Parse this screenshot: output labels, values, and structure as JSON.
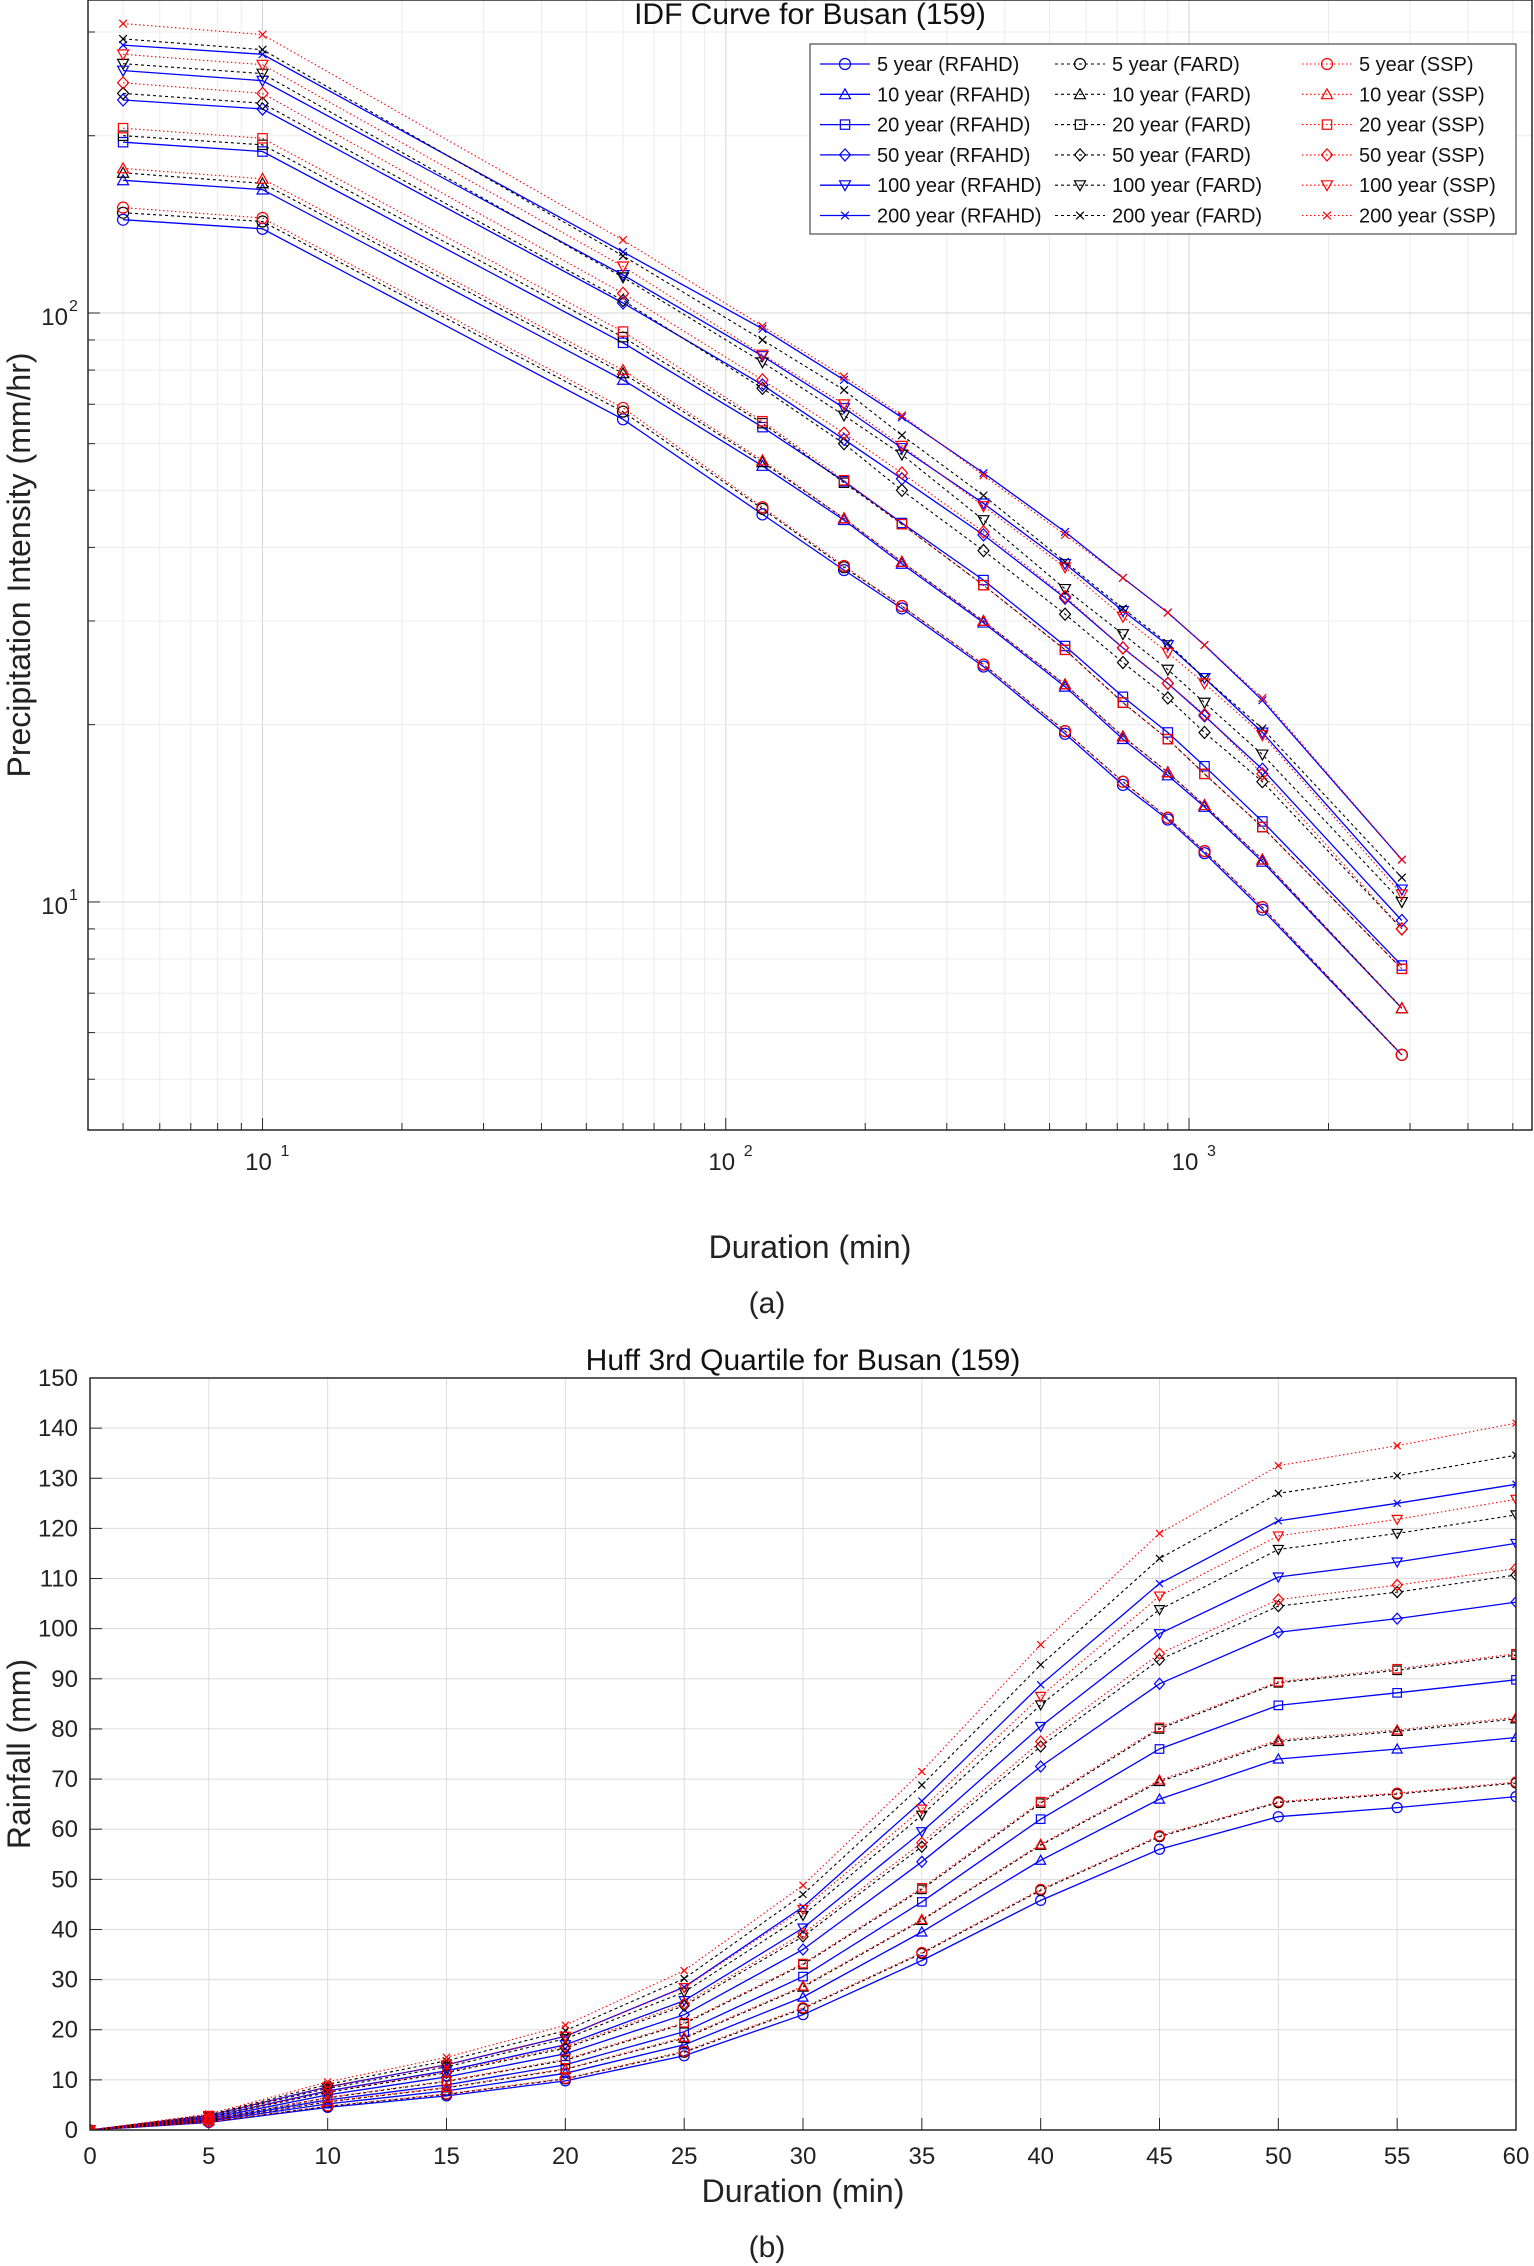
{
  "colors": {
    "RFAHD": "#0000ff",
    "FARD": "#000000",
    "SSP": "#ff0000"
  },
  "legend": [
    {
      "label": "5 year (RFAHD)",
      "method": "RFAHD",
      "marker": "circle"
    },
    {
      "label": "10 year (RFAHD)",
      "method": "RFAHD",
      "marker": "triangle"
    },
    {
      "label": "20 year (RFAHD)",
      "method": "RFAHD",
      "marker": "square"
    },
    {
      "label": "50 year (RFAHD)",
      "method": "RFAHD",
      "marker": "diamond"
    },
    {
      "label": "100 year (RFAHD)",
      "method": "RFAHD",
      "marker": "triangle-down"
    },
    {
      "label": "200 year (RFAHD)",
      "method": "RFAHD",
      "marker": "x"
    },
    {
      "label": "5 year (FARD)",
      "method": "FARD",
      "marker": "circle"
    },
    {
      "label": "10 year (FARD)",
      "method": "FARD",
      "marker": "triangle"
    },
    {
      "label": "20 year (FARD)",
      "method": "FARD",
      "marker": "square"
    },
    {
      "label": "50 year (FARD)",
      "method": "FARD",
      "marker": "diamond"
    },
    {
      "label": "100 year (FARD)",
      "method": "FARD",
      "marker": "triangle-down"
    },
    {
      "label": "200 year (FARD)",
      "method": "FARD",
      "marker": "x"
    },
    {
      "label": "5 year (SSP)",
      "method": "SSP",
      "marker": "circle"
    },
    {
      "label": "10 year (SSP)",
      "method": "SSP",
      "marker": "triangle"
    },
    {
      "label": "20 year (SSP)",
      "method": "SSP",
      "marker": "square"
    },
    {
      "label": "50 year (SSP)",
      "method": "SSP",
      "marker": "diamond"
    },
    {
      "label": "100 year (SSP)",
      "method": "SSP",
      "marker": "triangle-down"
    },
    {
      "label": "200 year (SSP)",
      "method": "SSP",
      "marker": "x"
    }
  ],
  "captions": {
    "a": "(a)",
    "b": "(b)"
  },
  "chart_data": [
    {
      "type": "line",
      "title": "IDF Curve for Busan (159)",
      "xlabel": "Duration (min)",
      "ylabel": "Precipitation Intensity (mm/hr)",
      "xscale": "log",
      "yscale": "log",
      "xlim": [
        4.2,
        5500
      ],
      "ylim": [
        4.1,
        340
      ],
      "xtick_labels": [
        {
          "base": "10",
          "exp": "1",
          "value": 10
        },
        {
          "base": "10",
          "exp": "2",
          "value": 100
        },
        {
          "base": "10",
          "exp": "3",
          "value": 1000
        }
      ],
      "ytick_labels": [
        {
          "base": "10",
          "exp": "1",
          "value": 10
        },
        {
          "base": "10",
          "exp": "2",
          "value": 100
        }
      ],
      "grid": true,
      "legend_position": "top-right",
      "x": [
        5,
        10,
        60,
        120,
        180,
        240,
        360,
        540,
        720,
        900,
        1080,
        1440,
        2880
      ],
      "series": [
        {
          "name": "5 year (RFAHD)",
          "method": "RFAHD",
          "marker": "circle",
          "values": [
            144,
            139,
            66,
            45.5,
            36.6,
            31.5,
            25.1,
            19.3,
            15.8,
            13.8,
            12.1,
            9.7,
            5.5
          ]
        },
        {
          "name": "10 year (RFAHD)",
          "method": "RFAHD",
          "marker": "triangle",
          "values": [
            168,
            162,
            77,
            55.0,
            44.5,
            37.5,
            29.8,
            23.2,
            18.9,
            16.4,
            14.5,
            11.7,
            6.6
          ]
        },
        {
          "name": "20 year (RFAHD)",
          "method": "RFAHD",
          "marker": "square",
          "values": [
            195,
            188,
            89,
            64.0,
            51.8,
            44.0,
            35.2,
            27.2,
            22.3,
            19.4,
            17.0,
            13.7,
            7.8
          ]
        },
        {
          "name": "50 year (RFAHD)",
          "method": "RFAHD",
          "marker": "diamond",
          "values": [
            230,
            222,
            104,
            75.5,
            61.0,
            52.3,
            42.0,
            32.8,
            27.0,
            23.5,
            20.7,
            16.8,
            9.3
          ]
        },
        {
          "name": "100 year (RFAHD)",
          "method": "RFAHD",
          "marker": "triangle-down",
          "values": [
            258,
            248,
            116,
            84.5,
            69.0,
            59.0,
            47.5,
            37.5,
            31.2,
            27.3,
            24.0,
            19.4,
            10.5
          ]
        },
        {
          "name": "200 year (RFAHD)",
          "method": "RFAHD",
          "marker": "x",
          "values": [
            285,
            275,
            127,
            94.0,
            77.0,
            66.5,
            53.5,
            42.5,
            35.5,
            31.0,
            27.3,
            22.0,
            11.8
          ]
        },
        {
          "name": "5 year (FARD)",
          "method": "FARD",
          "marker": "circle",
          "values": [
            148,
            143,
            68,
            46.5,
            37.0,
            31.8,
            25.3,
            19.5,
            16.0,
            13.9,
            12.2,
            9.8,
            5.5
          ]
        },
        {
          "name": "10 year (FARD)",
          "method": "FARD",
          "marker": "triangle",
          "values": [
            173,
            166,
            79,
            55.8,
            44.8,
            37.8,
            30.0,
            23.4,
            19.1,
            16.6,
            14.6,
            11.8,
            6.6
          ]
        },
        {
          "name": "20 year (FARD)",
          "method": "FARD",
          "marker": "square",
          "values": [
            200,
            193,
            91,
            65.0,
            51.5,
            43.8,
            34.5,
            26.8,
            21.8,
            18.9,
            16.5,
            13.4,
            7.7
          ]
        },
        {
          "name": "50 year (FARD)",
          "method": "FARD",
          "marker": "diamond",
          "values": [
            236,
            227,
            105,
            74.5,
            60.0,
            50.0,
            39.5,
            30.8,
            25.5,
            22.2,
            19.4,
            16.0,
            9.0
          ]
        },
        {
          "name": "100 year (FARD)",
          "method": "FARD",
          "marker": "triangle-down",
          "values": [
            265,
            255,
            115,
            82.5,
            67.0,
            57.5,
            44.5,
            34.0,
            28.5,
            24.8,
            21.8,
            17.8,
            10.0
          ]
        },
        {
          "name": "200 year (FARD)",
          "method": "FARD",
          "marker": "x",
          "values": [
            292,
            280,
            125,
            90.0,
            74.0,
            62.0,
            49.0,
            37.8,
            31.5,
            27.5,
            24.0,
            19.7,
            11.0
          ]
        },
        {
          "name": "5 year (SSP)",
          "method": "SSP",
          "marker": "circle",
          "values": [
            151,
            145,
            69,
            46.8,
            37.2,
            31.8,
            25.3,
            19.5,
            16.0,
            13.9,
            12.2,
            9.8,
            5.5
          ]
        },
        {
          "name": "10 year (SSP)",
          "method": "SSP",
          "marker": "triangle",
          "values": [
            176,
            169,
            80,
            56.2,
            44.8,
            37.8,
            30.0,
            23.4,
            19.1,
            16.6,
            14.6,
            11.8,
            6.6
          ]
        },
        {
          "name": "20 year (SSP)",
          "method": "SSP",
          "marker": "square",
          "values": [
            206,
            198,
            93,
            65.5,
            52.0,
            43.8,
            34.5,
            26.8,
            21.8,
            18.9,
            16.5,
            13.4,
            7.7
          ]
        },
        {
          "name": "50 year (SSP)",
          "method": "SSP",
          "marker": "diamond",
          "values": [
            246,
            236,
            108,
            77.0,
            62.5,
            53.5,
            42.5,
            33.0,
            27.0,
            23.5,
            20.8,
            16.5,
            9.0
          ]
        },
        {
          "name": "100 year (SSP)",
          "method": "SSP",
          "marker": "triangle-down",
          "values": [
            275,
            264,
            120,
            85.0,
            70.0,
            59.5,
            47.0,
            37.0,
            30.5,
            26.5,
            23.5,
            19.2,
            10.3
          ]
        },
        {
          "name": "200 year (SSP)",
          "method": "SSP",
          "marker": "x",
          "values": [
            310,
            297,
            133,
            95.0,
            78.0,
            67.0,
            53.0,
            42.0,
            35.5,
            31.0,
            27.3,
            22.2,
            11.8
          ]
        }
      ]
    },
    {
      "type": "line",
      "title": "Huff 3rd Quartile for Busan (159)",
      "xlabel": "Duration (min)",
      "ylabel": "Rainfall (mm)",
      "xlim": [
        0,
        60
      ],
      "ylim": [
        0,
        150
      ],
      "xticks": [
        0,
        5,
        10,
        15,
        20,
        25,
        30,
        35,
        40,
        45,
        50,
        55,
        60
      ],
      "yticks": [
        0,
        10,
        20,
        30,
        40,
        50,
        60,
        70,
        80,
        90,
        100,
        110,
        120,
        130,
        140,
        150
      ],
      "grid": true,
      "x": [
        0,
        5,
        10,
        15,
        20,
        25,
        30,
        35,
        40,
        45,
        50,
        55,
        60
      ],
      "series": [
        {
          "name": "5 year (RFAHD)",
          "method": "RFAHD",
          "marker": "circle",
          "values": [
            0,
            1.5,
            4.5,
            6.8,
            9.8,
            14.8,
            23.0,
            33.8,
            45.8,
            56.0,
            62.5,
            64.3,
            66.5
          ]
        },
        {
          "name": "10 year (RFAHD)",
          "method": "RFAHD",
          "marker": "triangle",
          "values": [
            0,
            1.8,
            5.2,
            7.8,
            11.3,
            17.0,
            26.5,
            39.5,
            53.8,
            66.0,
            74.0,
            76.0,
            78.3
          ]
        },
        {
          "name": "20 year (RFAHD)",
          "method": "RFAHD",
          "marker": "square",
          "values": [
            0,
            2.0,
            6.0,
            9.0,
            13.0,
            19.6,
            30.6,
            45.5,
            62.0,
            76.0,
            84.7,
            87.2,
            89.8
          ]
        },
        {
          "name": "50 year (RFAHD)",
          "method": "RFAHD",
          "marker": "diamond",
          "values": [
            0,
            2.3,
            7.0,
            10.6,
            15.2,
            23.0,
            36.0,
            53.5,
            72.5,
            89.0,
            99.3,
            102.0,
            105.3
          ]
        },
        {
          "name": "100 year (RFAHD)",
          "method": "RFAHD",
          "marker": "triangle-down",
          "values": [
            0,
            2.6,
            7.8,
            11.8,
            17.0,
            25.8,
            40.3,
            59.5,
            80.5,
            99.0,
            110.3,
            113.3,
            117.0
          ]
        },
        {
          "name": "200 year (RFAHD)",
          "method": "RFAHD",
          "marker": "x",
          "values": [
            0,
            2.9,
            8.6,
            13.0,
            18.7,
            28.5,
            44.5,
            65.6,
            88.8,
            109.0,
            121.5,
            125.0,
            128.8
          ]
        },
        {
          "name": "5 year (FARD)",
          "method": "FARD",
          "marker": "circle",
          "values": [
            0,
            1.6,
            4.7,
            7.1,
            10.2,
            15.5,
            24.2,
            35.2,
            47.8,
            58.5,
            65.3,
            67.0,
            69.2
          ]
        },
        {
          "name": "10 year (FARD)",
          "method": "FARD",
          "marker": "triangle",
          "values": [
            0,
            1.9,
            5.6,
            8.4,
            12.1,
            18.3,
            28.5,
            41.8,
            56.8,
            69.5,
            77.5,
            79.5,
            82.0
          ]
        },
        {
          "name": "20 year (FARD)",
          "method": "FARD",
          "marker": "square",
          "values": [
            0,
            2.1,
            6.4,
            9.7,
            13.9,
            21.2,
            33.0,
            48.0,
            65.2,
            80.0,
            89.2,
            91.7,
            94.7
          ]
        },
        {
          "name": "50 year (FARD)",
          "method": "FARD",
          "marker": "diamond",
          "values": [
            0,
            2.5,
            7.5,
            11.4,
            16.3,
            24.8,
            38.6,
            56.5,
            76.5,
            93.8,
            104.5,
            107.3,
            110.7
          ]
        },
        {
          "name": "100 year (FARD)",
          "method": "FARD",
          "marker": "triangle-down",
          "values": [
            0,
            2.8,
            8.3,
            12.6,
            18.2,
            27.5,
            42.8,
            62.8,
            84.8,
            103.8,
            115.8,
            119.0,
            122.7
          ]
        },
        {
          "name": "200 year (FARD)",
          "method": "FARD",
          "marker": "x",
          "values": [
            0,
            3.0,
            9.1,
            13.8,
            19.8,
            30.2,
            47.0,
            68.8,
            92.8,
            114.0,
            127.0,
            130.5,
            134.6
          ]
        },
        {
          "name": "5 year (SSP)",
          "method": "SSP",
          "marker": "circle",
          "values": [
            0,
            1.6,
            4.8,
            7.2,
            10.3,
            15.7,
            24.4,
            35.4,
            48.0,
            58.7,
            65.5,
            67.2,
            69.4
          ]
        },
        {
          "name": "10 year (SSP)",
          "method": "SSP",
          "marker": "triangle",
          "values": [
            0,
            1.9,
            5.7,
            8.5,
            12.2,
            18.5,
            28.7,
            42.0,
            57.0,
            69.8,
            77.8,
            79.8,
            82.3
          ]
        },
        {
          "name": "20 year (SSP)",
          "method": "SSP",
          "marker": "square",
          "values": [
            0,
            2.2,
            6.5,
            9.8,
            14.1,
            21.4,
            33.2,
            48.3,
            65.5,
            80.3,
            89.4,
            92.0,
            95.0
          ]
        },
        {
          "name": "50 year (SSP)",
          "method": "SSP",
          "marker": "diamond",
          "values": [
            0,
            2.6,
            7.7,
            11.6,
            16.6,
            25.2,
            39.2,
            57.3,
            77.5,
            95.0,
            105.8,
            108.7,
            112.0
          ]
        },
        {
          "name": "100 year (SSP)",
          "method": "SSP",
          "marker": "triangle-down",
          "values": [
            0,
            2.9,
            8.6,
            13.0,
            18.7,
            28.4,
            44.0,
            64.0,
            86.5,
            106.5,
            118.5,
            121.8,
            125.8
          ]
        },
        {
          "name": "200 year (SSP)",
          "method": "SSP",
          "marker": "x",
          "values": [
            0,
            3.2,
            9.6,
            14.5,
            20.9,
            31.8,
            48.8,
            71.5,
            96.8,
            119.0,
            132.5,
            136.5,
            141.0
          ]
        }
      ]
    }
  ]
}
